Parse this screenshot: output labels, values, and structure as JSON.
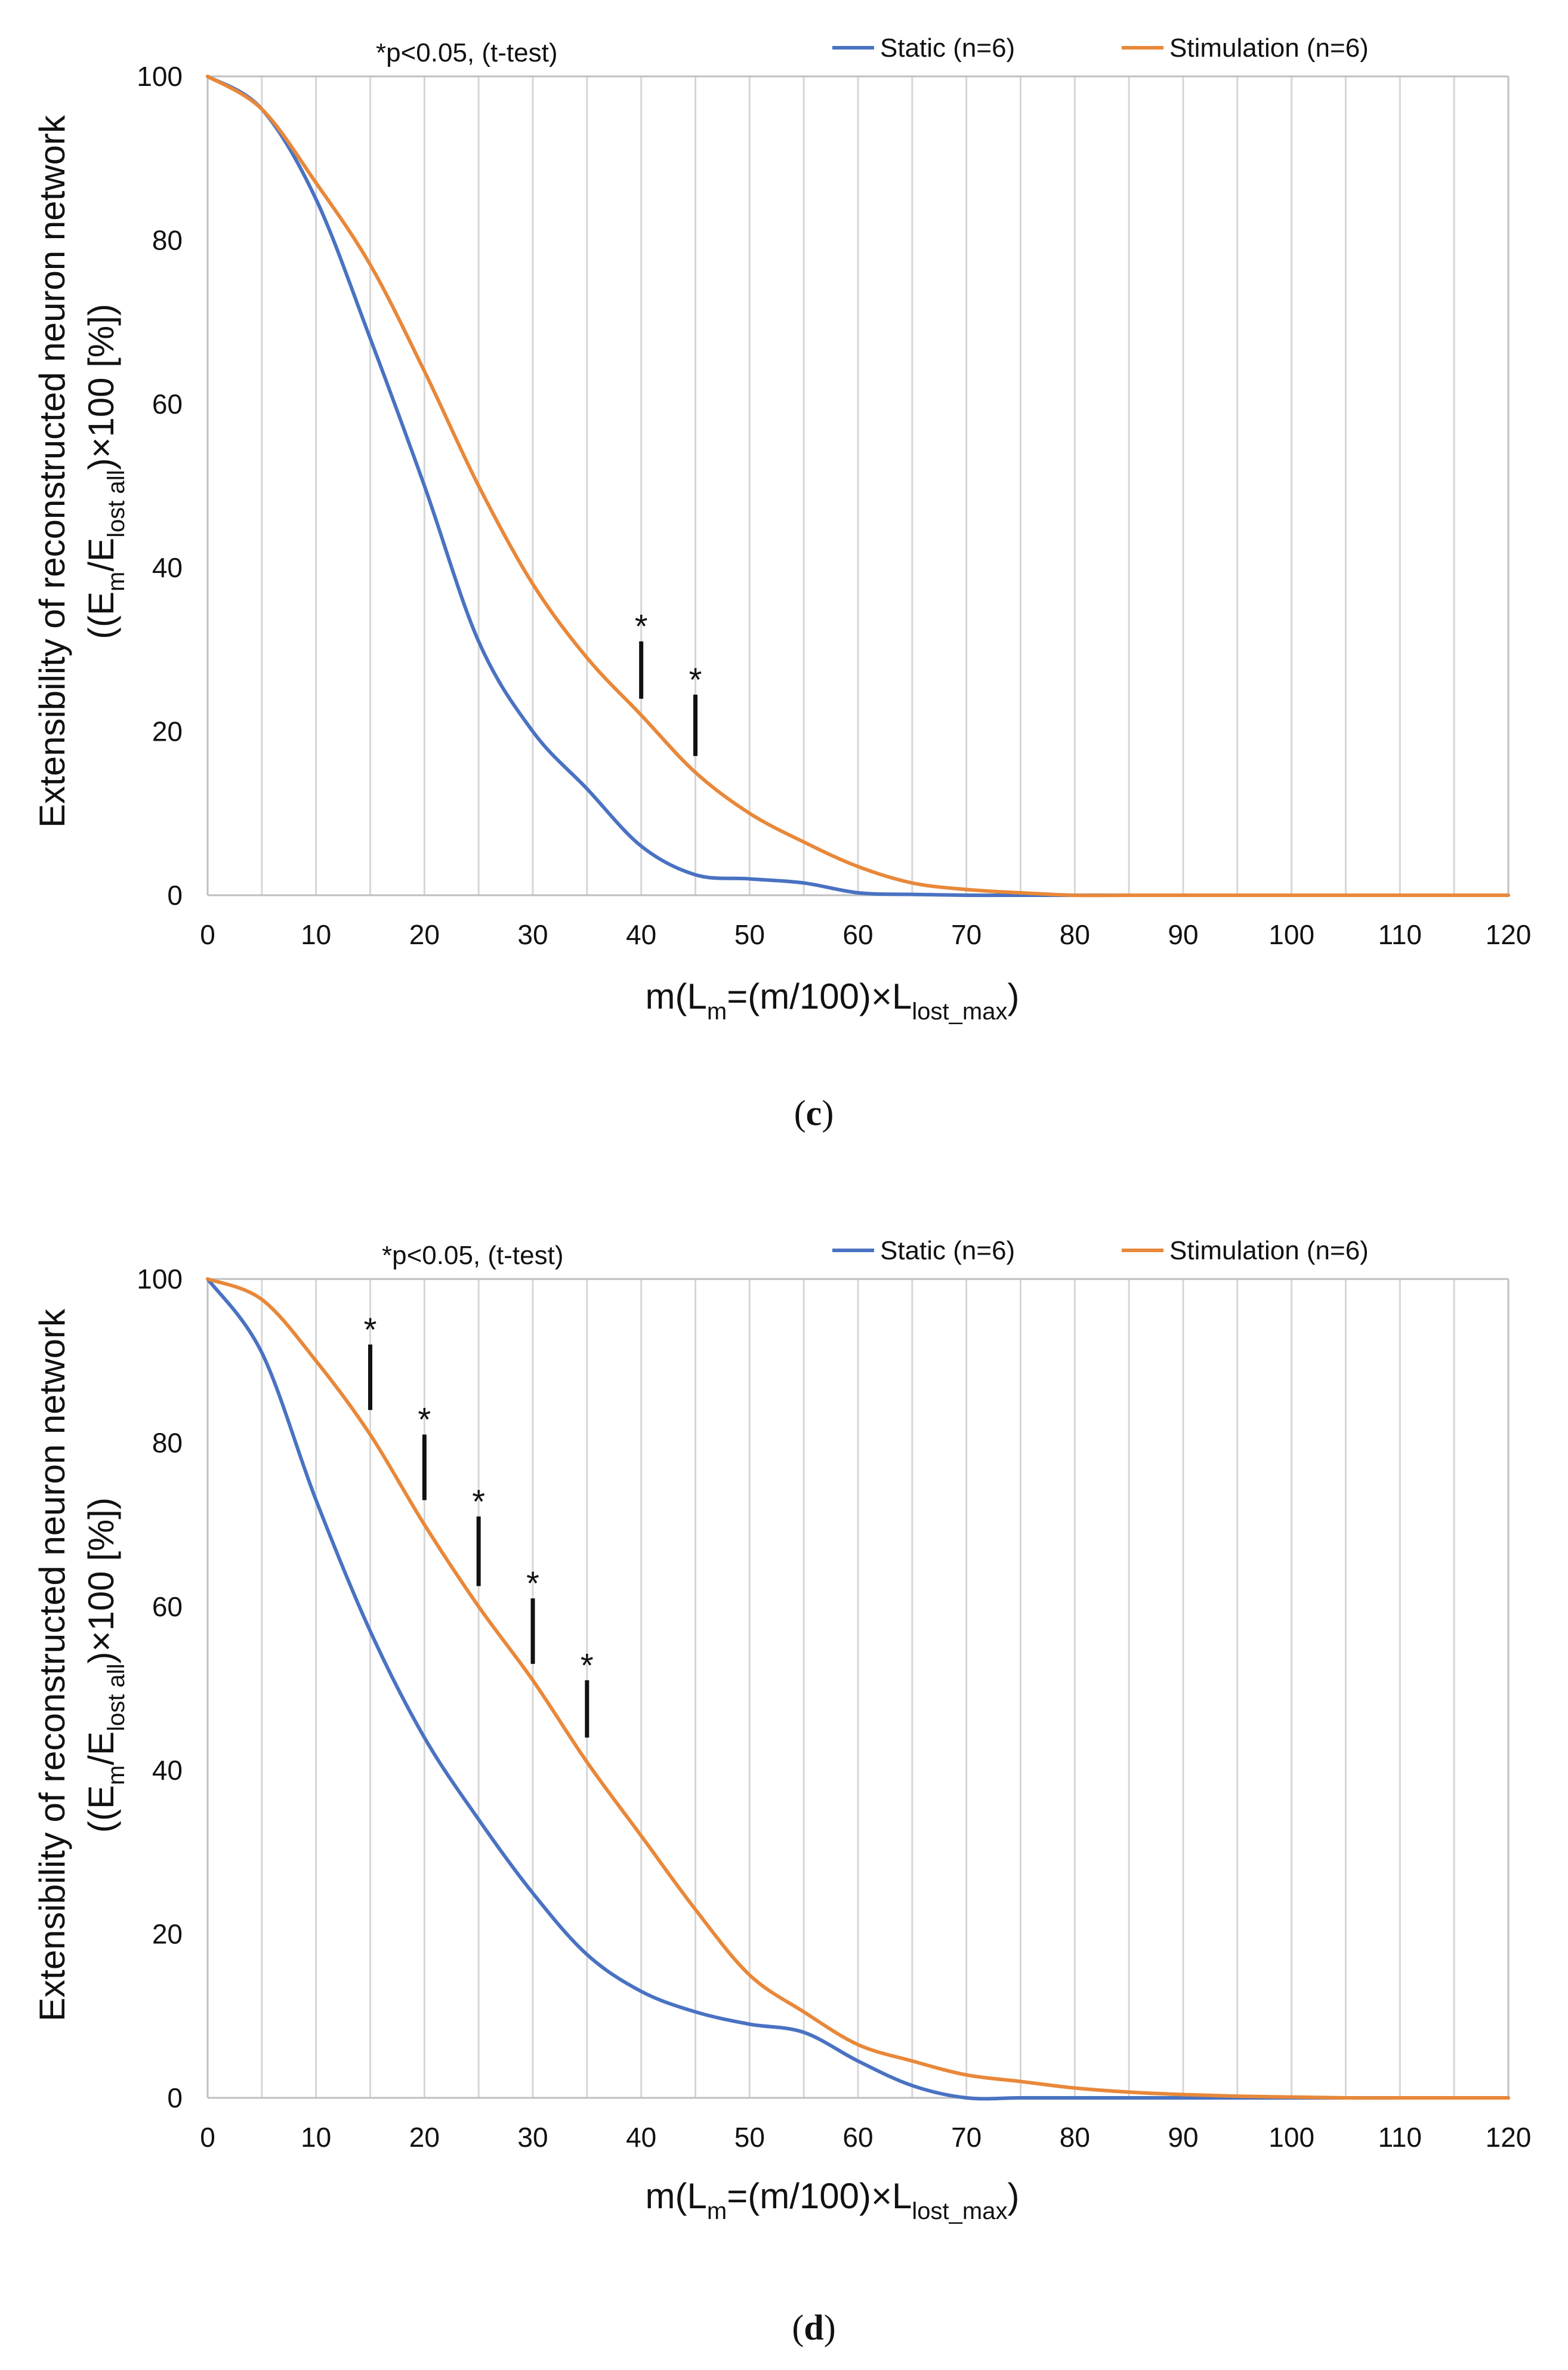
{
  "chart_data": [
    {
      "panel": "c",
      "type": "line",
      "annotation": "*p<0.05, (t-test)",
      "xlabel": {
        "prefix": "m(L",
        "sub1": "m",
        "mid": "=(m/100)×L",
        "sub2": "lost_max",
        "suffix": ")"
      },
      "ylabel": {
        "line1": "Extensibility of reconstructed neuron network",
        "line2": {
          "prefix": "((E",
          "sub1": "m",
          "mid": "/E",
          "sub2": "lost all",
          "suffix": ")×100 [%])"
        }
      },
      "xlim": [
        0,
        120
      ],
      "ylim": [
        0,
        100
      ],
      "xticks": [
        "0",
        "10",
        "20",
        "30",
        "40",
        "50",
        "60",
        "70",
        "80",
        "90",
        "100",
        "110",
        "120"
      ],
      "yticks": [
        "0",
        "20",
        "40",
        "60",
        "80",
        "100"
      ],
      "grid": "vertical every 5",
      "legend_position": "top-right",
      "colors": {
        "static": "#4a72c2",
        "stimulation": "#e8883a"
      },
      "series": [
        {
          "name": "Static (n=6)",
          "color": "#4a72c2",
          "x": [
            0,
            5,
            10,
            15,
            20,
            25,
            30,
            35,
            40,
            45,
            50,
            55,
            60,
            65,
            70,
            75,
            80,
            85,
            90,
            95,
            100,
            105,
            110,
            115,
            120
          ],
          "y": [
            100,
            96,
            85,
            68,
            50,
            31,
            20,
            13,
            6,
            2.5,
            2,
            1.5,
            0.3,
            0.1,
            0,
            0,
            0,
            0,
            0,
            0,
            0,
            0,
            0,
            0,
            0
          ]
        },
        {
          "name": "Stimulation (n=6)",
          "color": "#e8883a",
          "x": [
            0,
            5,
            10,
            15,
            20,
            25,
            30,
            35,
            40,
            45,
            50,
            55,
            60,
            65,
            70,
            75,
            80,
            85,
            90,
            95,
            100,
            105,
            110,
            115,
            120
          ],
          "y": [
            100,
            96,
            87,
            77,
            64,
            50,
            38,
            29,
            22,
            15,
            10,
            6.5,
            3.5,
            1.5,
            0.7,
            0.3,
            0,
            0,
            0,
            0,
            0,
            0,
            0,
            0,
            0
          ]
        }
      ],
      "significance": [
        {
          "x": 40,
          "top": 31,
          "bottom": 24,
          "label": "*"
        },
        {
          "x": 45,
          "top": 24.5,
          "bottom": 17,
          "label": "*"
        }
      ],
      "panel_label": "c"
    },
    {
      "panel": "d",
      "type": "line",
      "annotation": "*p<0.05, (t-test)",
      "xlabel": {
        "prefix": "m(L",
        "sub1": "m",
        "mid": "=(m/100)×L",
        "sub2": "lost_max",
        "suffix": ")"
      },
      "ylabel": {
        "line1": "Extensibility of reconstructed neuron network",
        "line2": {
          "prefix": "((E",
          "sub1": "m",
          "mid": "/E",
          "sub2": "lost all",
          "suffix": ")×100 [%])"
        }
      },
      "xlim": [
        0,
        120
      ],
      "ylim": [
        0,
        100
      ],
      "xticks": [
        "0",
        "10",
        "20",
        "30",
        "40",
        "50",
        "60",
        "70",
        "80",
        "90",
        "100",
        "110",
        "120"
      ],
      "yticks": [
        "0",
        "20",
        "40",
        "60",
        "80",
        "100"
      ],
      "grid": "vertical every 5",
      "legend_position": "top-right",
      "colors": {
        "static": "#4a72c2",
        "stimulation": "#e8883a"
      },
      "series": [
        {
          "name": "Static (n=6)",
          "color": "#4a72c2",
          "x": [
            0,
            5,
            10,
            15,
            20,
            25,
            30,
            35,
            40,
            45,
            50,
            55,
            60,
            65,
            70,
            75,
            80,
            85,
            90,
            95,
            100,
            105,
            110,
            115,
            120
          ],
          "y": [
            100,
            91,
            73,
            57,
            44,
            34,
            25,
            17.5,
            13,
            10.5,
            9,
            8,
            4.5,
            1.5,
            0,
            0,
            0,
            0,
            0,
            0,
            0,
            0,
            0,
            0,
            0
          ]
        },
        {
          "name": "Stimulation (n=6)",
          "color": "#e8883a",
          "x": [
            0,
            5,
            10,
            15,
            20,
            25,
            30,
            35,
            40,
            45,
            50,
            55,
            60,
            65,
            70,
            75,
            80,
            85,
            90,
            95,
            100,
            105,
            110,
            115,
            120
          ],
          "y": [
            100,
            97.5,
            90,
            81,
            70,
            60,
            51,
            41,
            32,
            23,
            15,
            10.5,
            6.5,
            4.5,
            2.8,
            2,
            1.2,
            0.7,
            0.4,
            0.2,
            0.1,
            0,
            0,
            0,
            0
          ]
        }
      ],
      "significance": [
        {
          "x": 15,
          "top": 92,
          "bottom": 84,
          "label": "*"
        },
        {
          "x": 20,
          "top": 81,
          "bottom": 73,
          "label": "*"
        },
        {
          "x": 25,
          "top": 71,
          "bottom": 62.5,
          "label": "*"
        },
        {
          "x": 30,
          "top": 61,
          "bottom": 53,
          "label": "*"
        },
        {
          "x": 35,
          "top": 51,
          "bottom": 44,
          "label": "*"
        }
      ],
      "panel_label": "d"
    }
  ]
}
